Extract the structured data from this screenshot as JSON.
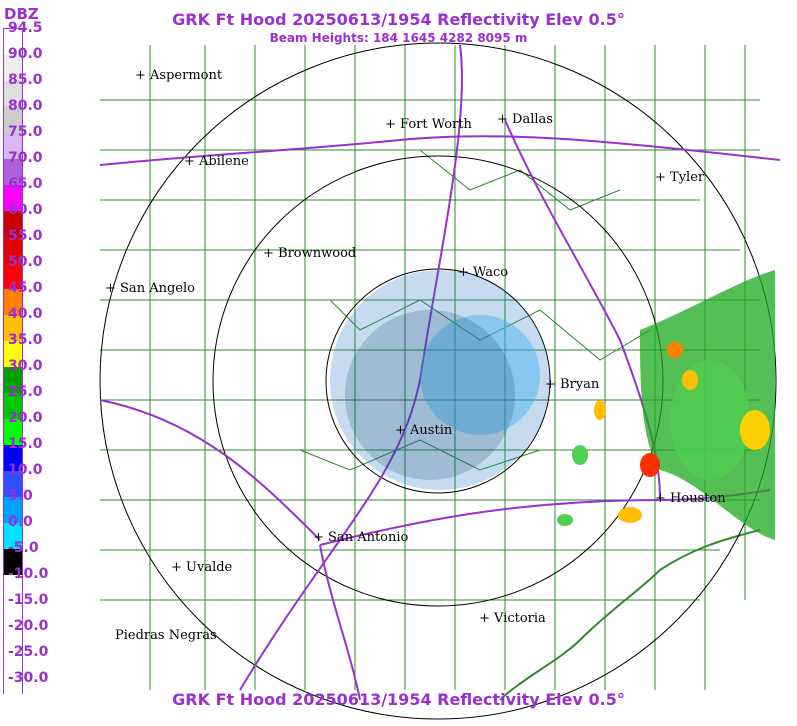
{
  "title": "GRK Ft Hood 20250613/1954 Reflectivity Elev 0.5°",
  "beam_heights": "Beam Heights: 184 1645 4282 8095 m",
  "legend": {
    "unit": "DBZ",
    "labels": [
      "94.5",
      "90.0",
      "85.0",
      "80.0",
      "75.0",
      "70.0",
      "65.0",
      "60.0",
      "55.0",
      "50.0",
      "45.0",
      "40.0",
      "35.0",
      "30.0",
      "25.0",
      "20.0",
      "15.0",
      "10.0",
      "5.0",
      "0.0",
      "-5.0",
      "-10.0",
      "-15.0",
      "-20.0",
      "-25.0",
      "-30.0"
    ],
    "colors": [
      "#ffffff",
      "#eeeeee",
      "#dddddd",
      "#cccccc",
      "#d8b8f0",
      "#b060d8",
      "#ff00ff",
      "#c80000",
      "#e00000",
      "#ff0000",
      "#ff7f00",
      "#ffbf00",
      "#ffff00",
      "#00a000",
      "#00c800",
      "#00ff00",
      "#0000ff",
      "#3050ff",
      "#00a0ff",
      "#00e0ff",
      "#000000",
      "#ffffff",
      "#ffffff",
      "#ffffff",
      "#ffffff",
      "#ffffff"
    ]
  },
  "cities": [
    {
      "name": "Aspermont"
    },
    {
      "name": "Fort Worth"
    },
    {
      "name": "Dallas"
    },
    {
      "name": "Abilene"
    },
    {
      "name": "Tyler"
    },
    {
      "name": "Brownwood"
    },
    {
      "name": "Waco"
    },
    {
      "name": "San Angelo"
    },
    {
      "name": "Bryan"
    },
    {
      "name": "Austin"
    },
    {
      "name": "Houston"
    },
    {
      "name": "San Antonio"
    },
    {
      "name": "Uvalde"
    },
    {
      "name": "Victoria"
    },
    {
      "name": "Piedras Negras"
    }
  ],
  "colors": {
    "accent": "#9b30d0",
    "counties": "#1f8a1f",
    "rings": "#000000",
    "highways": "#9b30d0"
  }
}
